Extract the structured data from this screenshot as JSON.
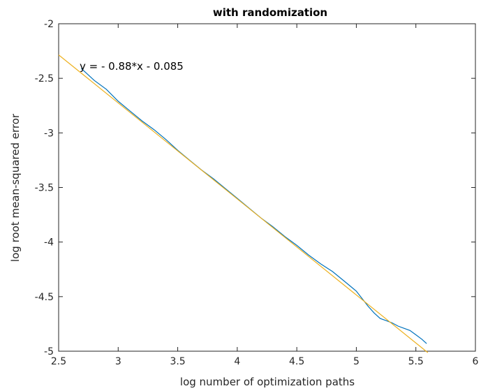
{
  "chart_data": {
    "type": "line",
    "title": "with randomization",
    "xlabel": "log number of optimization paths",
    "ylabel": "log root mean-squared error",
    "xlim": [
      2.5,
      6
    ],
    "ylim": [
      -5,
      -2
    ],
    "xticks": [
      2.5,
      3,
      3.5,
      4,
      4.5,
      5,
      5.5,
      6
    ],
    "xtick_labels": [
      "2.5",
      "3",
      "3.5",
      "4",
      "4.5",
      "5",
      "5.5",
      "6"
    ],
    "yticks": [
      -2,
      -2.5,
      -3,
      -3.5,
      -4,
      -4.5,
      -5
    ],
    "ytick_labels": [
      "-2",
      "-2.5",
      "-3",
      "-3.5",
      "-4",
      "-4.5",
      "-5"
    ],
    "grid": false,
    "series": [
      {
        "color": "#0072BD",
        "x": [
          2.69,
          2.8,
          2.9,
          3.0,
          3.1,
          3.2,
          3.3,
          3.4,
          3.5,
          3.6,
          3.7,
          3.8,
          3.9,
          4.0,
          4.1,
          4.2,
          4.3,
          4.4,
          4.5,
          4.6,
          4.7,
          4.8,
          4.9,
          5.0,
          5.05,
          5.1,
          5.15,
          5.2,
          5.25,
          5.3,
          5.35,
          5.4,
          5.45,
          5.5,
          5.55,
          5.59
        ],
        "y": [
          -2.41,
          -2.52,
          -2.6,
          -2.71,
          -2.8,
          -2.89,
          -2.97,
          -3.06,
          -3.16,
          -3.25,
          -3.34,
          -3.42,
          -3.51,
          -3.6,
          -3.69,
          -3.78,
          -3.86,
          -3.95,
          -4.03,
          -4.12,
          -4.2,
          -4.27,
          -4.36,
          -4.45,
          -4.52,
          -4.59,
          -4.65,
          -4.7,
          -4.72,
          -4.74,
          -4.77,
          -4.79,
          -4.81,
          -4.85,
          -4.89,
          -4.93
        ]
      },
      {
        "color": "#EDB120",
        "x": [
          2.5,
          5.6
        ],
        "y": [
          -2.285,
          -5.013
        ]
      }
    ],
    "annotations": [
      {
        "text": "y = - 0.88*x - 0.085",
        "x": 2.69,
        "y": -2.4
      }
    ]
  }
}
